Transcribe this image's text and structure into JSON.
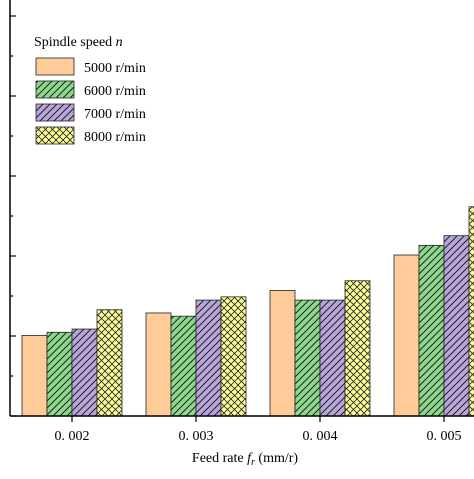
{
  "chart_data": {
    "type": "bar",
    "xlabel": "Feed rate",
    "xlabel_symbol": "f",
    "xlabel_subscript": "r",
    "xlabel_unit": "(mm/r)",
    "ylabel": "",
    "categories": [
      "0. 002",
      "0. 003",
      "0. 004",
      "0. 005"
    ],
    "ylim": [
      0,
      1
    ],
    "grid": false,
    "legend_position": "top-left",
    "legend_title": "Spindle speed",
    "legend_title_symbol": "n",
    "series": [
      {
        "name": "5000 r/min",
        "color": "#FFCC99",
        "pattern": "solid",
        "values": [
          0.25,
          0.32,
          0.39,
          0.5
        ]
      },
      {
        "name": "6000 r/min",
        "color": "#8CD98C",
        "pattern": "diagonal-hatch",
        "values": [
          0.26,
          0.31,
          0.36,
          0.53
        ]
      },
      {
        "name": "7000 r/min",
        "color": "#B8A6DB",
        "pattern": "diagonal-hatch",
        "values": [
          0.27,
          0.36,
          0.36,
          0.56
        ]
      },
      {
        "name": "8000 r/min",
        "color": "#FFFF99",
        "pattern": "crosshatch",
        "values": [
          0.33,
          0.37,
          0.42,
          0.65
        ]
      }
    ]
  }
}
